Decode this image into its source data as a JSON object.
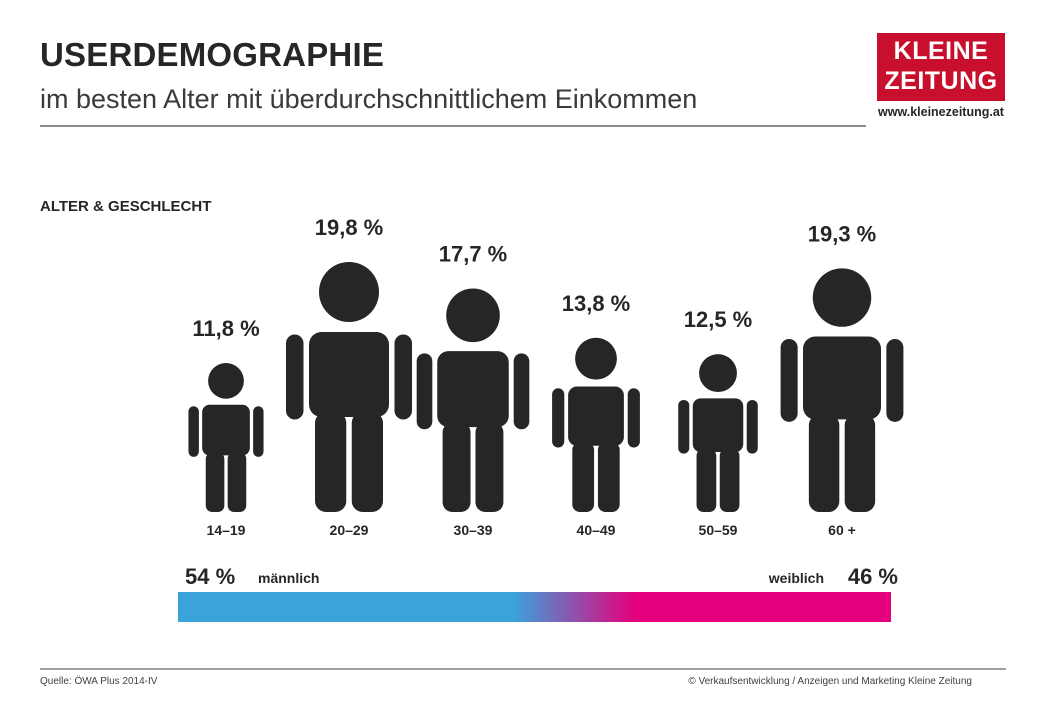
{
  "header": {
    "title": "USERDEMOGRAPHIE",
    "subtitle": "im besten Alter mit überdurchschnittlichem Einkommen"
  },
  "logo": {
    "line1": "KLEINE",
    "line2": "ZEITUNG",
    "url": "www.kleinezeitung.at"
  },
  "section_label": "ALTER & GESCHLECHT",
  "chart_data": {
    "type": "bar",
    "encoding": "pictogram",
    "categories": [
      "14–19",
      "20–29",
      "30–39",
      "40–49",
      "50–59",
      "60 +"
    ],
    "values": [
      11.8,
      19.8,
      17.7,
      13.8,
      12.5,
      19.3
    ],
    "value_labels": [
      "11,8 %",
      "19,8 %",
      "17,7 %",
      "13,8 %",
      "12,5 %",
      "19,3 %"
    ],
    "gender": {
      "male_value": 54,
      "male_value_label": "54 %",
      "male_label": "männlich",
      "female_value": 46,
      "female_value_label": "46 %",
      "female_label": "weiblich"
    }
  },
  "colors": {
    "figure": "#262626",
    "male": "#3aa3dc",
    "female": "#e5007d"
  },
  "footer": {
    "source": "Quelle: ÖWA Plus 2014-IV",
    "copyright": "© Verkaufsentwicklung  / Anzeigen und Marketing Kleine Zeitung"
  }
}
